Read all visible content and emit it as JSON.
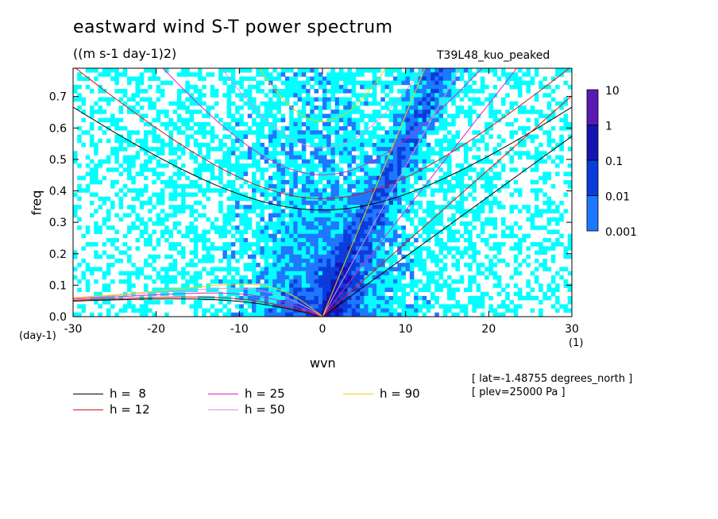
{
  "chart_data": {
    "type": "heatmap",
    "title": "eastward wind S-T power spectrum",
    "subtitle": "((m s-1 day-1)2)",
    "model_label": "T39L48_kuo_peaked",
    "xlabel": "wvn",
    "ylabel": "freq",
    "x_unit": "(1)",
    "y_unit": "(day-1)",
    "xlim": [
      -30,
      30
    ],
    "ylim": [
      0,
      0.79
    ],
    "x_ticks": [
      "-30",
      "-20",
      "-10",
      "0",
      "10",
      "20",
      "30"
    ],
    "y_ticks": [
      "0.0",
      "0.1",
      "0.2",
      "0.3",
      "0.4",
      "0.5",
      "0.6",
      "0.7"
    ],
    "colorbar": {
      "levels": [
        "10",
        "1",
        "0.1",
        "0.01",
        "0.001"
      ],
      "colors": [
        "#5a1bb5",
        "#1414b4",
        "#0a3cdc",
        "#1e78ff",
        "#00ffff"
      ]
    },
    "dispersion_curves": [
      {
        "label": "h =  8",
        "h": 8,
        "color": "#000000"
      },
      {
        "label": "h = 12",
        "h": 12,
        "color": "#e01010"
      },
      {
        "label": "h = 25",
        "h": 25,
        "color": "#e020c0"
      },
      {
        "label": "h = 50",
        "h": 50,
        "color": "#e090e0"
      },
      {
        "label": "h = 90",
        "h": 90,
        "color": "#f0d000"
      }
    ],
    "annotations": [
      "[ lat=-1.48755 degrees_north ]",
      "[ plev=25000 Pa ]"
    ]
  }
}
